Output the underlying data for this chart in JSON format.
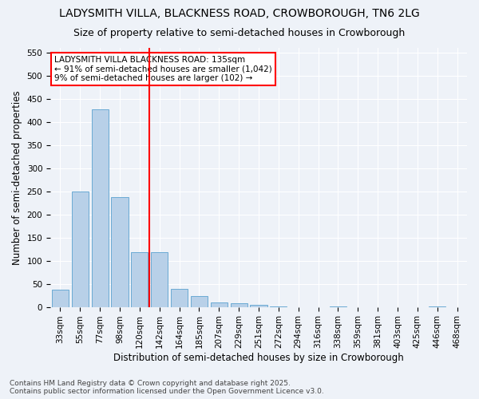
{
  "title": "LADYSMITH VILLA, BLACKNESS ROAD, CROWBOROUGH, TN6 2LG",
  "subtitle": "Size of property relative to semi-detached houses in Crowborough",
  "xlabel": "Distribution of semi-detached houses by size in Crowborough",
  "ylabel": "Number of semi-detached properties",
  "categories": [
    "33sqm",
    "55sqm",
    "77sqm",
    "98sqm",
    "120sqm",
    "142sqm",
    "164sqm",
    "185sqm",
    "207sqm",
    "229sqm",
    "251sqm",
    "272sqm",
    "294sqm",
    "316sqm",
    "338sqm",
    "359sqm",
    "381sqm",
    "403sqm",
    "425sqm",
    "446sqm",
    "468sqm"
  ],
  "values": [
    38,
    250,
    428,
    237,
    118,
    118,
    39,
    23,
    9,
    8,
    5,
    1,
    0,
    0,
    1,
    0,
    0,
    0,
    0,
    1,
    0
  ],
  "bar_color": "#b8d0e8",
  "bar_edge_color": "#6aaad4",
  "subject_line_label": "LADYSMITH VILLA BLACKNESS ROAD: 135sqm",
  "annotation_line1": "← 91% of semi-detached houses are smaller (1,042)",
  "annotation_line2": "9% of semi-detached houses are larger (102) →",
  "red_line_index": 5,
  "ylim": [
    0,
    560
  ],
  "yticks": [
    0,
    50,
    100,
    150,
    200,
    250,
    300,
    350,
    400,
    450,
    500,
    550
  ],
  "footer_line1": "Contains HM Land Registry data © Crown copyright and database right 2025.",
  "footer_line2": "Contains public sector information licensed under the Open Government Licence v3.0.",
  "background_color": "#eef2f8",
  "plot_background_color": "#eef2f8",
  "grid_color": "#ffffff",
  "title_fontsize": 10,
  "subtitle_fontsize": 9,
  "axis_label_fontsize": 8.5,
  "tick_fontsize": 7.5,
  "annotation_fontsize": 7.5,
  "footer_fontsize": 6.5
}
